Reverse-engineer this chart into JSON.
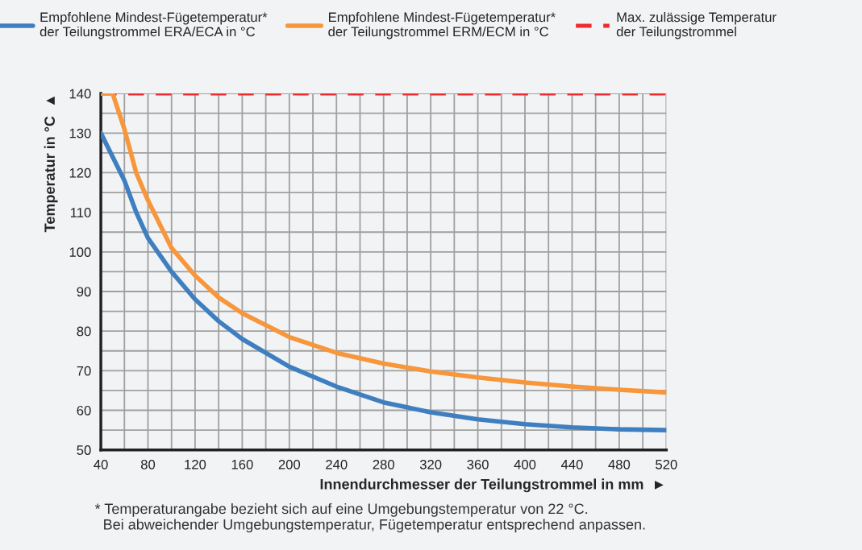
{
  "chart_data": {
    "type": "line",
    "xlabel": "Innendurchmesser der Teilungstrommel in mm  ►",
    "ylabel": "Temperatur in °C  ▲",
    "x": [
      40,
      50,
      60,
      70,
      80,
      100,
      120,
      140,
      160,
      200,
      240,
      280,
      320,
      360,
      400,
      440,
      480,
      520
    ],
    "series": [
      {
        "name": "Empfohlene Mindest-Fügetemperatur*\nder Teilungstrommel ERA/ECA in °C",
        "color": "#3f7fc0",
        "values": [
          130,
          124,
          118,
          110,
          103.5,
          95,
          88,
          82.5,
          78,
          71,
          66,
          62,
          59.5,
          57.7,
          56.5,
          55.7,
          55.2,
          55
        ]
      },
      {
        "name": "Empfohlene Mindest-Fügetemperatur*\nder Teilungstrommel ERM/ECM in °C",
        "color": "#f7963a",
        "values": [
          140,
          140,
          131,
          120,
          113,
          101,
          94,
          88.5,
          84.5,
          78.5,
          74.5,
          71.8,
          69.8,
          68.3,
          67,
          66,
          65.2,
          64.5
        ]
      }
    ],
    "ref_lines": [
      {
        "axis": "y",
        "value": 140,
        "label": "Max. zulässige Temperatur\nder Teilungstrommel",
        "color": "#ee2b2f",
        "line_style": "dashed"
      }
    ],
    "xlim": [
      40,
      520
    ],
    "ylim": [
      50,
      140
    ],
    "xticks": [
      40,
      {
        "value": 60,
        "label": null
      },
      80,
      {
        "value": 100,
        "label": null
      },
      120,
      {
        "value": 140,
        "label": null
      },
      160,
      {
        "value": 180,
        "label": null
      },
      200,
      {
        "value": 220,
        "label": null
      },
      240,
      {
        "value": 260,
        "label": null
      },
      280,
      {
        "value": 300,
        "label": null
      },
      320,
      {
        "value": 340,
        "label": null
      },
      360,
      {
        "value": 380,
        "label": null
      },
      400,
      {
        "value": 420,
        "label": null
      },
      440,
      {
        "value": 460,
        "label": null
      },
      480,
      {
        "value": 500,
        "label": null
      },
      520
    ],
    "yticks": [
      50,
      {
        "value": 55,
        "label": null
      },
      60,
      {
        "value": 65,
        "label": null
      },
      70,
      {
        "value": 75,
        "label": null
      },
      80,
      {
        "value": 85,
        "label": null
      },
      90,
      {
        "value": 95,
        "label": null
      },
      100,
      {
        "value": 105,
        "label": null
      },
      110,
      {
        "value": 115,
        "label": null
      },
      120,
      {
        "value": 125,
        "label": null
      },
      130,
      {
        "value": 135,
        "label": null
      },
      140
    ],
    "grid": true,
    "legend": "top",
    "line_style": "solid",
    "annotations": [
      "* Temperaturangabe bezieht sich auf eine Umgebungstemperatur von 22 °C.\n  Bei abweichender Umgebungstemperatur, Fügetemperatur entsprechend anpassen."
    ]
  }
}
